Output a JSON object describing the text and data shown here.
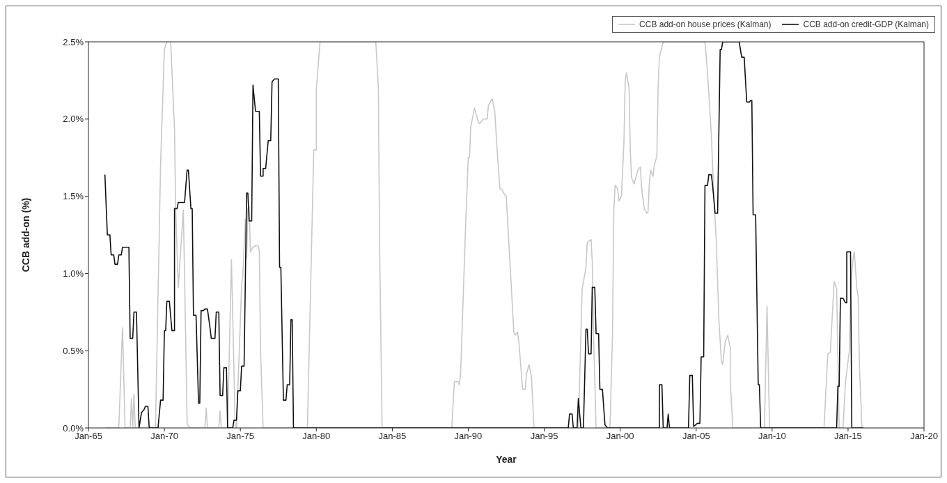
{
  "chart_data": {
    "type": "line",
    "xlabel": "Year",
    "ylabel": "CCB add-on (%)",
    "legend": "top right",
    "xlim": [
      "1965-01",
      "2020-01"
    ],
    "xticks": [
      {
        "value": "1965-01",
        "label": "Jan-65"
      },
      {
        "value": "1970-01",
        "label": "Jan-70"
      },
      {
        "value": "1975-01",
        "label": "Jan-75"
      },
      {
        "value": "1980-01",
        "label": "Jan-80"
      },
      {
        "value": "1985-01",
        "label": "Jan-85"
      },
      {
        "value": "1990-01",
        "label": "Jan-90"
      },
      {
        "value": "1995-01",
        "label": "Jan-95"
      },
      {
        "value": "2000-01",
        "label": "Jan-00"
      },
      {
        "value": "2005-01",
        "label": "Jan-05"
      },
      {
        "value": "2010-01",
        "label": "Jan-10"
      },
      {
        "value": "2015-01",
        "label": "Jan-15"
      },
      {
        "value": "2020-01",
        "label": "Jan-20"
      }
    ],
    "ylim": [
      0,
      2.5
    ],
    "yticks": [
      {
        "value": 0,
        "label": "0.0%"
      },
      {
        "value": 0.5,
        "label": "0.5%"
      },
      {
        "value": 1,
        "label": "1.0%"
      },
      {
        "value": 1.5,
        "label": "1.5%"
      },
      {
        "value": 2,
        "label": "2.0%"
      },
      {
        "value": 2.5,
        "label": "2.5%"
      }
    ],
    "series": [
      {
        "name": "CCB add-on house prices (Kalman)",
        "color": "#c8c8c8",
        "x": [
          "1966-02",
          "1967-01",
          "1967-04",
          "1967-06",
          "1967-10",
          "1967-11",
          "1967-12",
          "1968-01",
          "1968-02",
          "1969-06",
          "1969-10",
          "1970-01",
          "1970-03",
          "1970-06",
          "1970-09",
          "1970-10",
          "1970-12",
          "1971-04",
          "1971-05",
          "1971-07",
          "1971-09",
          "1972-09",
          "1972-10",
          "1972-11",
          "1973-08",
          "1973-09",
          "1973-10",
          "1974-03",
          "1974-06",
          "1974-09",
          "1974-10",
          "1975-02",
          "1975-03",
          "1975-05",
          "1975-06",
          "1975-07",
          "1975-08",
          "1975-09",
          "1975-11",
          "1976-01",
          "1976-03",
          "1976-04",
          "1976-05",
          "1976-07",
          "1979-06",
          "1979-11",
          "1980-01",
          "1980-01",
          "1980-04",
          "1983-12",
          "1984-02",
          "1984-03",
          "1984-05",
          "1988-12",
          "1989-02",
          "1989-05",
          "1989-06",
          "1989-07",
          "1989-11",
          "1990-01",
          "1990-02",
          "1990-03",
          "1990-06",
          "1990-09",
          "1990-10",
          "1991-01",
          "1991-04",
          "1991-05",
          "1991-08",
          "1991-10",
          "1991-12",
          "1992-02",
          "1992-04",
          "1992-05",
          "1992-07",
          "1992-08",
          "1993-01",
          "1993-02",
          "1993-04",
          "1993-05",
          "1993-08",
          "1993-10",
          "1993-11",
          "1994-01",
          "1994-03",
          "1994-05",
          "1997-04",
          "1997-07",
          "1997-10",
          "1997-11",
          "1998-02",
          "1998-03",
          "1998-04",
          "1998-06",
          "1999-05",
          "1999-07",
          "1999-08",
          "1999-09",
          "1999-11",
          "1999-12",
          "2000-02",
          "2000-04",
          "2000-05",
          "2000-06",
          "2000-08",
          "2000-09",
          "2000-10",
          "2000-12",
          "2001-03",
          "2001-05",
          "2001-06",
          "2001-08",
          "2001-10",
          "2001-11",
          "2001-12",
          "2002-01",
          "2002-03",
          "2002-04",
          "2002-06",
          "2002-07",
          "2002-08",
          "2002-11",
          "2005-08",
          "2005-10",
          "2006-01",
          "2006-03",
          "2006-05",
          "2006-07",
          "2006-09",
          "2006-10",
          "2006-12",
          "2007-02",
          "2007-04",
          "2007-04",
          "2007-06",
          "2009-07",
          "2009-09",
          "2009-11",
          "2013-06",
          "2013-09",
          "2013-11",
          "2014-01",
          "2014-02",
          "2014-04",
          "2014-06",
          "2014-09",
          "2014-11",
          "2015-02",
          "2015-03",
          "2015-05",
          "2015-06",
          "2015-08",
          "2015-09",
          "2015-10",
          "2015-12",
          "2016-01"
        ],
        "values": [
          0,
          0,
          0.65,
          0,
          0,
          0.19,
          0,
          0.22,
          0,
          0,
          1.7,
          2.45,
          2.5,
          2.5,
          1.94,
          1.4,
          0.91,
          1.41,
          1.0,
          0.03,
          0,
          0,
          0.13,
          0,
          0,
          0.11,
          0,
          0,
          1.09,
          0,
          0,
          0.93,
          0.98,
          1.35,
          1.1,
          1.42,
          1.43,
          1.14,
          1.17,
          1.18,
          1.18,
          1.15,
          0.5,
          0,
          0,
          1.8,
          1.8,
          2.19,
          2.5,
          2.5,
          2.2,
          1.2,
          0,
          0,
          0.3,
          0.3,
          0.28,
          0.35,
          1.33,
          1.75,
          1.75,
          1.95,
          2.07,
          1.98,
          1.97,
          2.0,
          2.0,
          2.09,
          2.13,
          2.05,
          1.78,
          1.55,
          1.54,
          1.52,
          1.5,
          1.36,
          0.62,
          0.6,
          0.62,
          0.56,
          0.25,
          0.25,
          0.35,
          0.41,
          0.33,
          0,
          0,
          0.9,
          1.04,
          1.2,
          1.22,
          1.08,
          0.6,
          0,
          0,
          0.6,
          1.4,
          1.57,
          1.55,
          1.47,
          1.5,
          1.85,
          2.25,
          2.3,
          2.2,
          1.8,
          1.62,
          1.58,
          1.67,
          1.69,
          1.55,
          1.42,
          1.39,
          1.4,
          1.58,
          1.67,
          1.63,
          1.7,
          1.76,
          2.2,
          2.4,
          2.5,
          2.5,
          2.3,
          1.9,
          1.5,
          1.2,
          0.7,
          0.43,
          0.41,
          0.56,
          0.6,
          0.52,
          0.3,
          0,
          0,
          0.79,
          0,
          0,
          0.48,
          0.49,
          0.8,
          0.95,
          0.9,
          0,
          0,
          0.3,
          0.5,
          0.9,
          1.1,
          1.14,
          0.9,
          0.85,
          0.4,
          0,
          0
        ]
      },
      {
        "name": "CCB add-on credit-GDP (Kalman)",
        "color": "#111111",
        "x": [
          "1966-02",
          "1966-04",
          "1966-06",
          "1966-07",
          "1966-09",
          "1966-10",
          "1966-12",
          "1967-01",
          "1967-03",
          "1967-04",
          "1967-09",
          "1967-10",
          "1967-12",
          "1968-01",
          "1968-03",
          "1968-05",
          "1968-07",
          "1968-09",
          "1968-10",
          "1968-12",
          "1969-01",
          "1969-08",
          "1969-10",
          "1969-12",
          "1970-01",
          "1970-02",
          "1970-03",
          "1970-05",
          "1970-07",
          "1970-09",
          "1970-09",
          "1970-11",
          "1970-12",
          "1971-05",
          "1971-07",
          "1971-08",
          "1971-10",
          "1971-11",
          "1971-12",
          "1972-02",
          "1972-04",
          "1972-05",
          "1972-06",
          "1972-08",
          "1972-09",
          "1972-11",
          "1973-01",
          "1973-02",
          "1973-05",
          "1973-06",
          "1973-08",
          "1973-09",
          "1973-11",
          "1973-12",
          "1974-02",
          "1974-03",
          "1974-07",
          "1974-08",
          "1974-10",
          "1974-11",
          "1975-01",
          "1975-02",
          "1975-04",
          "1975-06",
          "1975-07",
          "1975-08",
          "1975-10",
          "1975-11",
          "1976-01",
          "1976-04",
          "1976-05",
          "1976-07",
          "1976-07",
          "1976-09",
          "1976-11",
          "1977-01",
          "1977-02",
          "1977-04",
          "1977-07",
          "1977-08",
          "1977-09",
          "1977-11",
          "1978-01",
          "1978-02",
          "1978-04",
          "1978-05",
          "1978-06",
          "1978-07",
          "1996-08",
          "1996-09",
          "1996-11",
          "1996-12",
          "1997-03",
          "1997-04",
          "1997-06",
          "1997-08",
          "1997-10",
          "1997-11",
          "1997-12",
          "1998-02",
          "1998-03",
          "1998-05",
          "1998-06",
          "1998-08",
          "1998-09",
          "1998-11",
          "1999-01",
          "1999-03",
          "2002-08",
          "2002-08",
          "2002-10",
          "2002-11",
          "2003-02",
          "2003-03",
          "2003-04",
          "2004-07",
          "2004-08",
          "2004-10",
          "2004-11",
          "2005-02",
          "2005-04",
          "2005-05",
          "2005-07",
          "2005-08",
          "2005-10",
          "2005-11",
          "2006-01",
          "2006-02",
          "2006-04",
          "2006-06",
          "2006-08",
          "2006-09",
          "2006-10",
          "2007-11",
          "2008-01",
          "2008-03",
          "2008-05",
          "2008-07",
          "2008-08",
          "2008-09",
          "2008-10",
          "2008-12",
          "2009-02",
          "2009-03",
          "2009-04",
          "2014-04",
          "2014-05",
          "2014-06",
          "2014-07",
          "2014-09",
          "2014-11",
          "2014-12",
          "2014-12",
          "2015-03",
          "2015-04",
          "2016-01"
        ],
        "values": [
          1.64,
          1.25,
          1.25,
          1.12,
          1.12,
          1.06,
          1.06,
          1.12,
          1.12,
          1.17,
          1.17,
          0.58,
          0.58,
          0.75,
          0.75,
          0,
          0.1,
          0.12,
          0.14,
          0.14,
          0,
          0,
          0.18,
          0.18,
          0.63,
          0.63,
          0.82,
          0.82,
          0.63,
          0.63,
          1.42,
          1.42,
          1.46,
          1.46,
          1.67,
          1.67,
          1.42,
          1.42,
          0.73,
          0.73,
          0.16,
          0.16,
          0.76,
          0.76,
          0.77,
          0.77,
          0.65,
          0.58,
          0.58,
          0.75,
          0.75,
          0.21,
          0.21,
          0.39,
          0.39,
          0,
          0,
          0.05,
          0.05,
          0.24,
          0.24,
          0.4,
          0.4,
          1.52,
          1.52,
          1.34,
          1.34,
          2.22,
          2.05,
          2.05,
          1.63,
          1.63,
          1.68,
          1.68,
          1.86,
          1.86,
          2.24,
          2.26,
          2.26,
          1.04,
          1.04,
          0.18,
          0.18,
          0.28,
          0.28,
          0.7,
          0.7,
          0,
          0,
          0.09,
          0.09,
          0,
          0,
          0.19,
          0,
          0,
          0.64,
          0.64,
          0.48,
          0.48,
          0.91,
          0.91,
          0.61,
          0.61,
          0.25,
          0.25,
          0.02,
          0,
          0,
          0.28,
          0.28,
          0,
          0,
          0.09,
          0,
          0,
          0.34,
          0.34,
          0.01,
          0.03,
          0.03,
          0.46,
          0.46,
          1.57,
          1.57,
          1.64,
          1.64,
          1.57,
          1.39,
          1.39,
          2.45,
          2.45,
          2.5,
          2.5,
          2.4,
          2.4,
          2.11,
          2.11,
          2.12,
          2.12,
          1.38,
          1.38,
          0.28,
          0.28,
          0,
          0,
          0.27,
          0.27,
          0.84,
          0.84,
          0.81,
          0.81,
          1.14,
          1.14,
          0,
          0
        ]
      }
    ]
  }
}
